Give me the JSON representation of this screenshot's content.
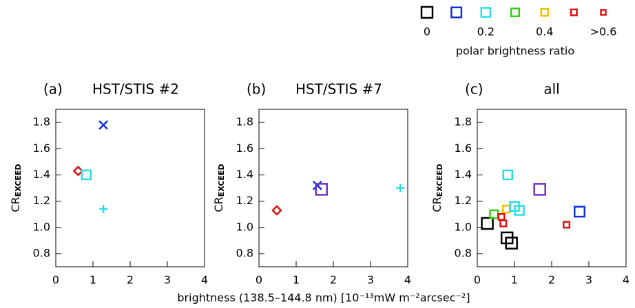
{
  "chart_data": [
    {
      "type": "scatter",
      "label": "(a)",
      "title": "HST/STIS #2",
      "xlim": [
        0,
        4
      ],
      "ylim": [
        0.7,
        1.9
      ],
      "xticks": [
        0,
        1,
        2,
        3,
        4
      ],
      "yticks": [
        0.8,
        {
          "value": 1,
          "label": "1.0"
        },
        1.2,
        1.4,
        1.6,
        1.8
      ],
      "ylabel": "CR",
      "ylabel_subscript": "EXCEED",
      "series": [
        {
          "marker": "x",
          "color": "#1030e0",
          "x": [
            1.28
          ],
          "values": [
            1.78
          ]
        },
        {
          "marker": "diamond",
          "color": "#e01010",
          "x": [
            0.6
          ],
          "values": [
            1.43
          ]
        },
        {
          "marker": "square",
          "color": "#20e0e8",
          "x": [
            0.82
          ],
          "values": [
            1.4
          ]
        },
        {
          "marker": "plus",
          "color": "#20e0e8",
          "x": [
            1.28
          ],
          "values": [
            1.14
          ]
        }
      ]
    },
    {
      "type": "scatter",
      "label": "(b)",
      "title": "HST/STIS #7",
      "xlim": [
        0,
        4
      ],
      "ylim": [
        0.7,
        1.9
      ],
      "xticks": [
        0,
        1,
        2,
        3,
        4
      ],
      "yticks": [
        0.8,
        {
          "value": 1,
          "label": "1.0"
        },
        1.2,
        1.4,
        1.6,
        1.8
      ],
      "ylabel": "CR",
      "ylabel_subscript": "EXCEED",
      "series": [
        {
          "marker": "diamond",
          "color": "#e01010",
          "x": [
            0.48
          ],
          "values": [
            1.13
          ]
        },
        {
          "marker": "x",
          "color": "#1030e0",
          "x": [
            1.57
          ],
          "values": [
            1.32
          ]
        },
        {
          "marker": "square",
          "color": "#7030c0",
          "x": [
            1.68
          ],
          "values": [
            1.29
          ]
        },
        {
          "marker": "plus",
          "color": "#20e0e8",
          "x": [
            3.8
          ],
          "values": [
            1.3
          ]
        }
      ]
    },
    {
      "type": "scatter",
      "label": "(c)",
      "title": "all",
      "xlim": [
        0,
        4
      ],
      "ylim": [
        0.7,
        1.9
      ],
      "xticks": [
        0,
        1,
        2,
        3,
        4
      ],
      "yticks": [
        0.8,
        {
          "value": 1,
          "label": "1.0"
        },
        1.2,
        1.4,
        1.6,
        1.8
      ],
      "ylabel": "CR",
      "ylabel_subscript": "EXCEED",
      "series": [
        {
          "marker": "square",
          "color": "#000000",
          "x": [
            0.27,
            0.8,
            0.92
          ],
          "values": [
            1.03,
            0.92,
            0.88
          ]
        },
        {
          "marker": "square",
          "color": "#30d010",
          "x": [
            0.45
          ],
          "values": [
            1.1
          ]
        },
        {
          "marker": "square",
          "color": "#f0c000",
          "x": [
            0.78
          ],
          "values": [
            1.14
          ]
        },
        {
          "marker": "square",
          "color": "#e01010",
          "x": [
            0.65,
            0.7,
            2.4
          ],
          "values": [
            1.08,
            1.03,
            1.02
          ]
        },
        {
          "marker": "square",
          "color": "#20e0e8",
          "x": [
            0.82,
            1.0,
            1.13
          ],
          "values": [
            1.4,
            1.16,
            1.13
          ]
        },
        {
          "marker": "square",
          "color": "#7030c0",
          "x": [
            1.68
          ],
          "values": [
            1.29
          ]
        },
        {
          "marker": "square",
          "color": "#1030e0",
          "x": [
            2.75
          ],
          "values": [
            1.12
          ]
        }
      ]
    }
  ],
  "shared_xlabel": "brightness (138.5–144.8 nm) [10⁻¹³mW m⁻²arcsec⁻²]",
  "legend": {
    "title": "polar brightness ratio",
    "range": [
      0,
      0.6
    ],
    "colors": [
      "#000000",
      "#1030e0",
      "#20e0e8",
      "#30d010",
      "#f0c000",
      "#e01010",
      "#e01010"
    ],
    "ticks": [
      0,
      0.2,
      0.4,
      {
        "value": 0.6,
        "label": ">0.6"
      }
    ]
  }
}
